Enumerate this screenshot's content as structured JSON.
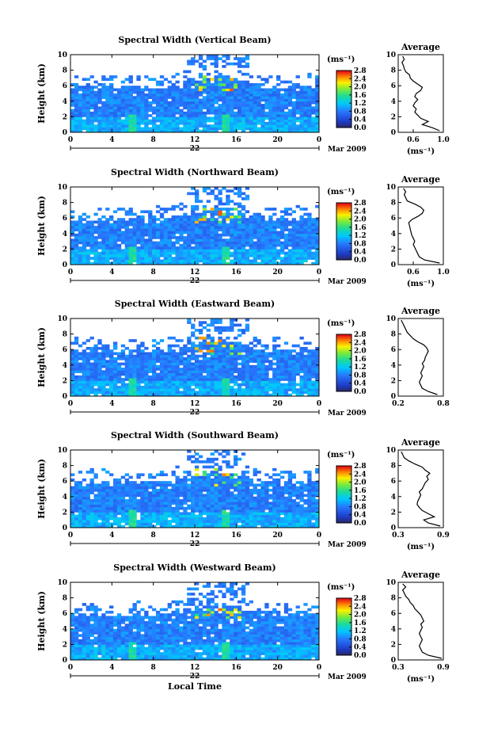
{
  "chart_data": [
    {
      "type": "heatmap",
      "title": "Spectral Width (Vertical Beam)",
      "ylabel": "Height (km)",
      "xlabel": "",
      "x_ticks": [
        "0",
        "4",
        "8",
        "12",
        "16",
        "20",
        "0"
      ],
      "y_ticks": [
        "0",
        "2",
        "4",
        "6",
        "8",
        "10"
      ],
      "xlim": [
        0,
        24
      ],
      "ylim": [
        0,
        10
      ],
      "date_day": "22",
      "date_month": "Mar 2009",
      "colorbar": {
        "unit": "(ms⁻¹)",
        "ticks": [
          "0.0",
          "0.4",
          "0.8",
          "1.2",
          "1.6",
          "2.0",
          "2.4",
          "2.8"
        ]
      },
      "profile": {
        "title": "Average",
        "xlabel": "(ms⁻¹)",
        "x_ticks": [
          "0.6",
          "1.0"
        ],
        "xlim": [
          0.4,
          1.0
        ],
        "height": [
          0.2,
          0.6,
          1.0,
          1.4,
          1.8,
          2.2,
          2.6,
          3.0,
          3.4,
          3.8,
          4.2,
          4.6,
          5.0,
          5.4,
          5.8,
          6.2,
          6.6,
          7.0,
          7.4,
          7.8,
          8.2,
          8.6,
          9.0,
          9.4,
          9.8
        ],
        "value": [
          0.95,
          0.85,
          0.72,
          0.8,
          0.7,
          0.66,
          0.62,
          0.64,
          0.6,
          0.62,
          0.66,
          0.62,
          0.64,
          0.7,
          0.72,
          0.66,
          0.6,
          0.56,
          0.55,
          0.5,
          0.48,
          0.47,
          0.45,
          0.48,
          0.46
        ]
      }
    },
    {
      "type": "heatmap",
      "title": "Spectral Width (Northward Beam)",
      "ylabel": "Height (km)",
      "xlabel": "",
      "x_ticks": [
        "0",
        "4",
        "8",
        "12",
        "16",
        "20",
        "0"
      ],
      "y_ticks": [
        "0",
        "2",
        "4",
        "6",
        "8",
        "10"
      ],
      "xlim": [
        0,
        24
      ],
      "ylim": [
        0,
        10
      ],
      "date_day": "22",
      "date_month": "Mar 2009",
      "colorbar": {
        "unit": "(ms⁻¹)",
        "ticks": [
          "0.0",
          "0.4",
          "0.8",
          "1.2",
          "1.6",
          "2.0",
          "2.4",
          "2.8"
        ]
      },
      "profile": {
        "title": "Average",
        "xlabel": "(ms⁻¹)",
        "x_ticks": [
          "0.6",
          "1.0"
        ],
        "xlim": [
          0.4,
          1.0
        ],
        "height": [
          0.2,
          0.6,
          1.0,
          1.4,
          1.8,
          2.2,
          2.6,
          3.0,
          3.4,
          3.8,
          4.2,
          4.6,
          5.0,
          5.4,
          5.8,
          6.2,
          6.6,
          7.0,
          7.4,
          7.8,
          8.2,
          8.6,
          9.0,
          9.4,
          9.8
        ],
        "value": [
          0.95,
          0.75,
          0.68,
          0.66,
          0.64,
          0.62,
          0.6,
          0.62,
          0.6,
          0.58,
          0.57,
          0.56,
          0.55,
          0.54,
          0.58,
          0.66,
          0.72,
          0.74,
          0.7,
          0.62,
          0.52,
          0.5,
          0.48,
          0.5,
          0.47
        ]
      }
    },
    {
      "type": "heatmap",
      "title": "Spectral Width (Eastward Beam)",
      "ylabel": "Height (km)",
      "xlabel": "",
      "x_ticks": [
        "0",
        "4",
        "8",
        "12",
        "16",
        "20",
        "0"
      ],
      "y_ticks": [
        "0",
        "2",
        "4",
        "6",
        "8",
        "10"
      ],
      "xlim": [
        0,
        24
      ],
      "ylim": [
        0,
        10
      ],
      "date_day": "22",
      "date_month": "Mar 2009",
      "colorbar": {
        "unit": "(ms⁻¹)",
        "ticks": [
          "0.0",
          "0.4",
          "0.8",
          "1.2",
          "1.6",
          "2.0",
          "2.4",
          "2.8"
        ]
      },
      "profile": {
        "title": "Average",
        "xlabel": "",
        "x_ticks": [
          "0.2",
          "0.8"
        ],
        "xlim": [
          0.2,
          0.8
        ],
        "height": [
          0.2,
          0.6,
          1.0,
          1.4,
          1.8,
          2.2,
          2.6,
          3.0,
          3.4,
          3.8,
          4.2,
          4.6,
          5.0,
          5.4,
          5.8,
          6.2,
          6.6,
          7.0,
          7.4,
          7.8,
          8.2,
          8.6,
          9.0,
          9.4,
          9.8
        ],
        "value": [
          0.72,
          0.6,
          0.52,
          0.5,
          0.48,
          0.5,
          0.52,
          0.5,
          0.52,
          0.54,
          0.52,
          0.55,
          0.56,
          0.58,
          0.6,
          0.58,
          0.54,
          0.46,
          0.4,
          0.36,
          0.32,
          0.3,
          0.28,
          0.26,
          0.24
        ]
      }
    },
    {
      "type": "heatmap",
      "title": "Spectral Width (Southward Beam)",
      "ylabel": "Height (km)",
      "xlabel": "",
      "x_ticks": [
        "0",
        "4",
        "8",
        "12",
        "16",
        "20",
        "0"
      ],
      "y_ticks": [
        "0",
        "2",
        "4",
        "6",
        "8",
        "10"
      ],
      "xlim": [
        0,
        24
      ],
      "ylim": [
        0,
        10
      ],
      "date_day": "22",
      "date_month": "Mar 2009",
      "colorbar": {
        "unit": "(ms⁻¹)",
        "ticks": [
          "0.0",
          "0.4",
          "0.8",
          "1.2",
          "1.6",
          "2.0",
          "2.4",
          "2.8"
        ]
      },
      "profile": {
        "title": "Average",
        "xlabel": "(ms⁻¹)",
        "x_ticks": [
          "0.3",
          "0.9"
        ],
        "xlim": [
          0.3,
          0.9
        ],
        "height": [
          0.2,
          0.6,
          1.0,
          1.4,
          1.8,
          2.2,
          2.6,
          3.0,
          3.4,
          3.8,
          4.2,
          4.6,
          5.0,
          5.4,
          5.8,
          6.2,
          6.6,
          7.0,
          7.4,
          7.8,
          8.2,
          8.6,
          9.0,
          9.4,
          9.8
        ],
        "value": [
          0.86,
          0.7,
          0.64,
          0.78,
          0.7,
          0.62,
          0.58,
          0.55,
          0.56,
          0.58,
          0.6,
          0.58,
          0.62,
          0.64,
          0.66,
          0.7,
          0.68,
          0.72,
          0.66,
          0.62,
          0.52,
          0.44,
          0.38,
          0.36,
          0.34
        ]
      }
    },
    {
      "type": "heatmap",
      "title": "Spectral Width (Westward Beam)",
      "ylabel": "Height (km)",
      "xlabel": "Local Time",
      "x_ticks": [
        "0",
        "4",
        "8",
        "12",
        "16",
        "20",
        "0"
      ],
      "y_ticks": [
        "0",
        "2",
        "4",
        "6",
        "8",
        "10"
      ],
      "xlim": [
        0,
        24
      ],
      "ylim": [
        0,
        10
      ],
      "date_day": "22",
      "date_month": "Mar 2009",
      "colorbar": {
        "unit": "(ms⁻¹)",
        "ticks": [
          "0.0",
          "0.4",
          "0.8",
          "1.2",
          "1.6",
          "2.0",
          "2.4",
          "2.8"
        ]
      },
      "profile": {
        "title": "Average",
        "xlabel": "(ms⁻¹)",
        "x_ticks": [
          "0.3",
          "0.9"
        ],
        "xlim": [
          0.3,
          0.9
        ],
        "height": [
          0.2,
          0.6,
          1.0,
          1.4,
          1.8,
          2.2,
          2.6,
          3.0,
          3.4,
          3.8,
          4.2,
          4.6,
          5.0,
          5.4,
          5.8,
          6.2,
          6.6,
          7.0,
          7.4,
          7.8,
          8.2,
          8.6,
          9.0,
          9.4,
          9.8
        ],
        "value": [
          0.88,
          0.7,
          0.62,
          0.6,
          0.58,
          0.6,
          0.62,
          0.6,
          0.58,
          0.6,
          0.62,
          0.6,
          0.64,
          0.62,
          0.6,
          0.56,
          0.52,
          0.5,
          0.46,
          0.44,
          0.4,
          0.38,
          0.36,
          0.4,
          0.36
        ]
      }
    }
  ]
}
